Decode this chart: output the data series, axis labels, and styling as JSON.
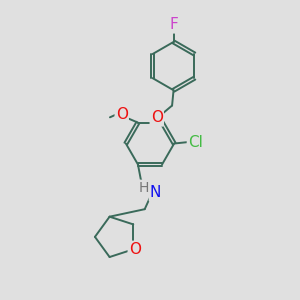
{
  "background_color": "#e0e0e0",
  "bond_color": "#3a6a5a",
  "atom_colors": {
    "F": "#cc44cc",
    "O": "#ee1111",
    "N": "#1111ee",
    "Cl": "#44bb44",
    "H": "#777777"
  },
  "bond_width": 1.4,
  "fig_size": [
    3.0,
    3.0
  ],
  "dpi": 100,
  "font_size": 10
}
